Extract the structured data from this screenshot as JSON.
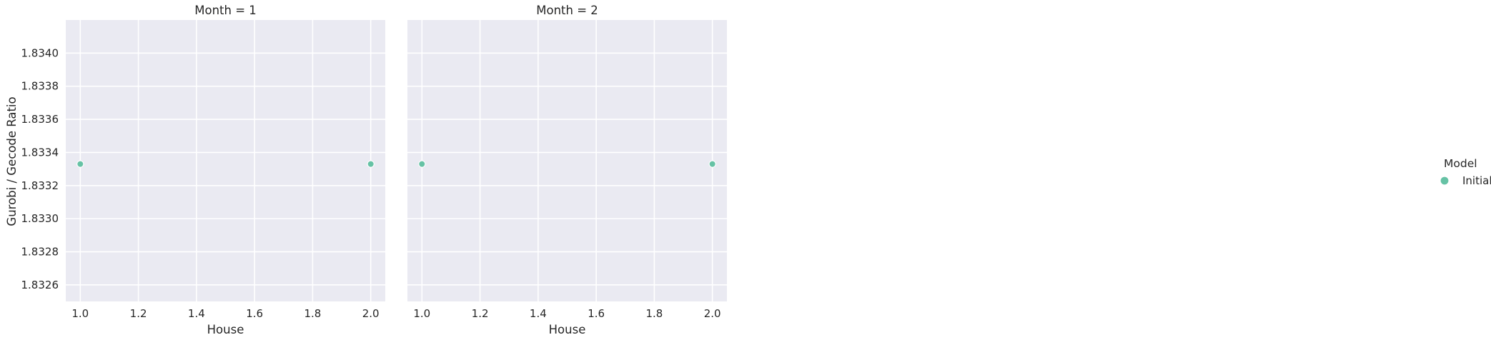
{
  "chart_data": {
    "type": "scatter",
    "ylabel": "Gurobi / Gecode Ratio",
    "ylim": [
      1.8325,
      1.8342
    ],
    "yticks": [
      "1.8326",
      "1.8328",
      "1.8330",
      "1.8332",
      "1.8334",
      "1.8336",
      "1.8338",
      "1.8340"
    ],
    "xlim": [
      0.95,
      2.05
    ],
    "xticks": [
      "1.0",
      "1.2",
      "1.4",
      "1.6",
      "1.8",
      "2.0"
    ],
    "grid": true,
    "legend": {
      "title": "Model",
      "placement": "right",
      "entries": [
        {
          "label": "Initial",
          "color": "#66c2a5"
        }
      ]
    },
    "panels": [
      {
        "title": "Month = 1",
        "xlabel": "House",
        "series": [
          {
            "name": "Initial",
            "color": "#66c2a5",
            "x": [
              1.0,
              2.0
            ],
            "y": [
              1.83333,
              1.83333
            ]
          }
        ]
      },
      {
        "title": "Month = 2",
        "xlabel": "House",
        "series": [
          {
            "name": "Initial",
            "color": "#66c2a5",
            "x": [
              1.0,
              2.0
            ],
            "y": [
              1.83333,
              1.83333
            ]
          }
        ]
      }
    ]
  }
}
